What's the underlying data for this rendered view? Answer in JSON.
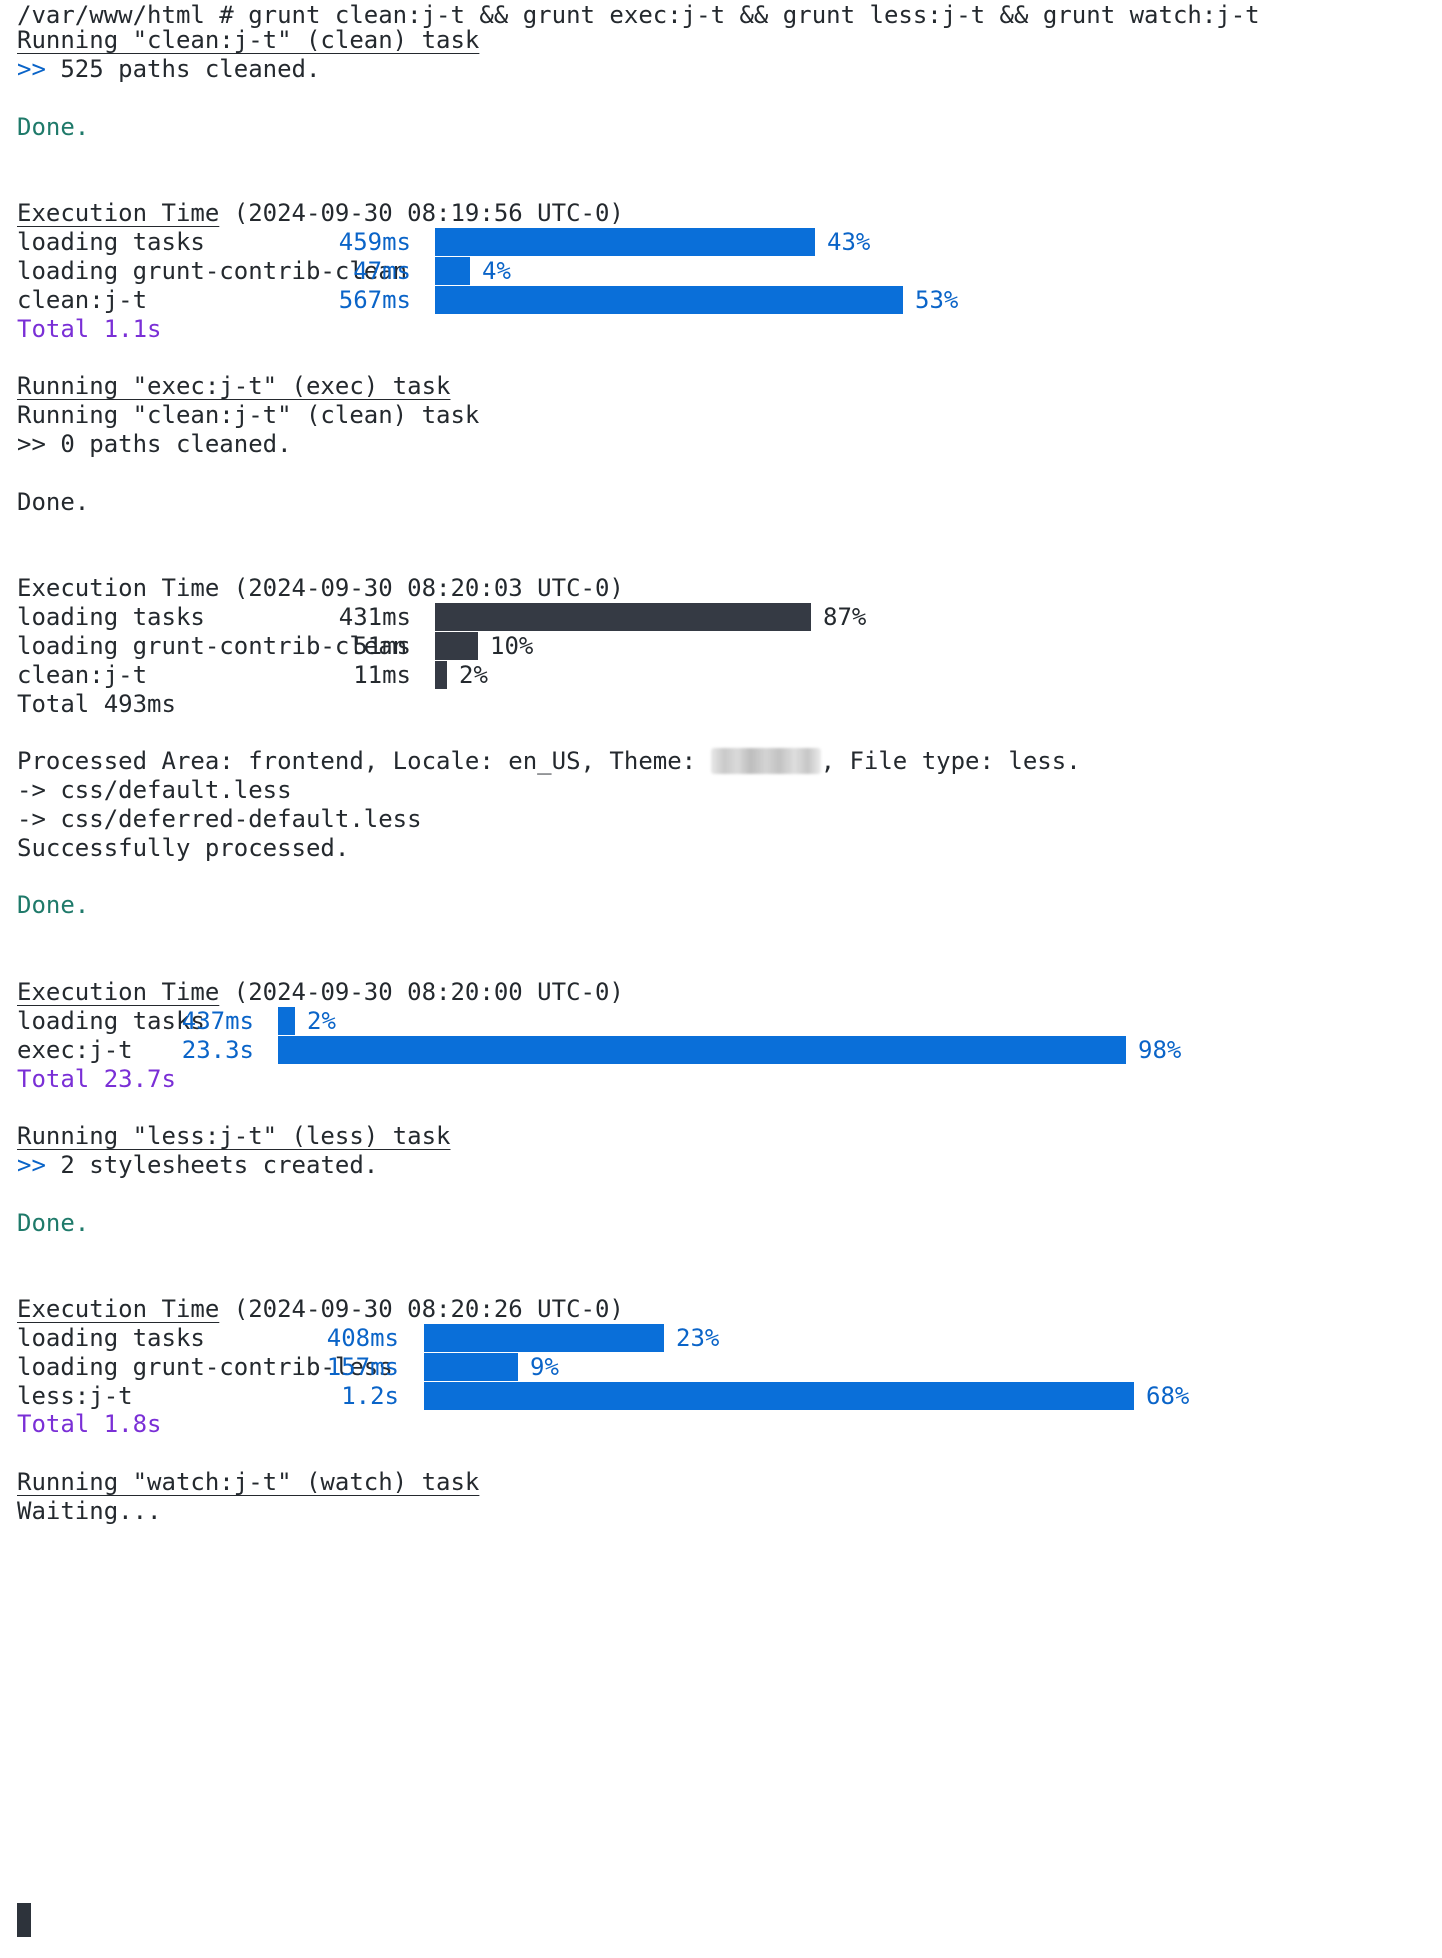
{
  "prompt": "/var/www/html # grunt clean:j-t && grunt exec:j-t && grunt less:j-t && grunt watch:j-t",
  "clean_run": {
    "header": "Running \"clean:j-t\" (clean) task",
    "result": ">> 525 paths cleaned.",
    "done": "Done."
  },
  "timing1": {
    "title_label": "Execution Time",
    "title_stamp": " (2024-09-30 08:19:56 UTC-0)",
    "color": "#0a6fd9",
    "rows": [
      {
        "label": "loading tasks",
        "duration": "459ms",
        "percent": "43%"
      },
      {
        "label": "loading grunt-contrib-clean",
        "duration": "47ms",
        "percent": "4%"
      },
      {
        "label": "clean:j-t",
        "duration": "567ms",
        "percent": "53%"
      }
    ],
    "total": "Total 1.1s"
  },
  "exec_run": {
    "header": "Running \"exec:j-t\" (exec) task",
    "inner_header": "Running \"clean:j-t\" (clean) task",
    "result": ">> 0 paths cleaned.",
    "done": "Done."
  },
  "timing2": {
    "title_label": "Execution Time",
    "title_stamp": " (2024-09-30 08:20:03 UTC-0)",
    "color": "#353a44",
    "rows": [
      {
        "label": "loading tasks",
        "duration": "431ms",
        "percent": "87%"
      },
      {
        "label": "loading grunt-contrib-clean",
        "duration": "51ms",
        "percent": "10%"
      },
      {
        "label": "clean:j-t",
        "duration": "11ms",
        "percent": "2%"
      }
    ],
    "total": "Total 493ms"
  },
  "processed": {
    "line_before": "Processed Area: frontend, Locale: en_US, Theme: ",
    "line_after": ", File type: less.",
    "files": [
      "-> css/default.less",
      "-> css/deferred-default.less"
    ],
    "success": "Successfully processed.",
    "done": "Done."
  },
  "timing3": {
    "title_label": "Execution Time",
    "title_stamp": " (2024-09-30 08:20:00 UTC-0)",
    "color": "#0a6fd9",
    "rows": [
      {
        "label": "loading tasks",
        "duration": "437ms",
        "percent": "2%"
      },
      {
        "label": "exec:j-t",
        "duration": "23.3s",
        "percent": "98%"
      }
    ],
    "total": "Total 23.7s"
  },
  "less_run": {
    "header": "Running \"less:j-t\" (less) task",
    "result": ">> 2 stylesheets created.",
    "done": "Done."
  },
  "timing4": {
    "title_label": "Execution Time",
    "title_stamp": " (2024-09-30 08:20:26 UTC-0)",
    "color": "#0a6fd9",
    "rows": [
      {
        "label": "loading tasks",
        "duration": "408ms",
        "percent": "23%"
      },
      {
        "label": "loading grunt-contrib-less",
        "duration": "157ms",
        "percent": "9%"
      },
      {
        "label": "less:j-t",
        "duration": "1.2s",
        "percent": "68%"
      }
    ],
    "total": "Total 1.8s"
  },
  "watch_run": {
    "header": "Running \"watch:j-t\" (watch) task",
    "status": "Waiting..."
  }
}
